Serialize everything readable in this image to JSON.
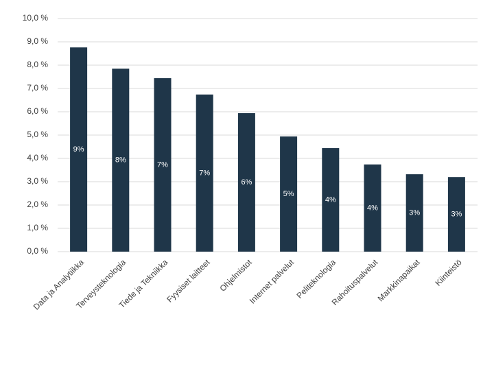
{
  "chart_data": {
    "type": "bar",
    "categories": [
      "Data ja Analytiikka",
      "Terveysteknologia",
      "Tiede ja Tekniikka",
      "Fyysiset laitteet",
      "Ohjelmistot",
      "Internet palvelut",
      "Peliteknologia",
      "Rahoituspalvelut",
      "Markkinapaikat",
      "Kiinteistö"
    ],
    "values": [
      8.76,
      7.85,
      7.44,
      6.74,
      5.94,
      4.94,
      4.44,
      3.74,
      3.32,
      3.2
    ],
    "value_labels": [
      "9%",
      "8%",
      "7%",
      "7%",
      "6%",
      "5%",
      "4%",
      "4%",
      "3%",
      "3%"
    ],
    "color": "#1f3649",
    "ylim": [
      0,
      10
    ],
    "yticks": [
      {
        "value": 0,
        "label": "0,0 %"
      },
      {
        "value": 1,
        "label": "1,0 %"
      },
      {
        "value": 2,
        "label": "2,0 %"
      },
      {
        "value": 3,
        "label": "3,0 %"
      },
      {
        "value": 4,
        "label": "4,0 %"
      },
      {
        "value": 5,
        "label": "5,0 %"
      },
      {
        "value": 6,
        "label": "6,0 %"
      },
      {
        "value": 7,
        "label": "7,0 %"
      },
      {
        "value": 8,
        "label": "8,0 %"
      },
      {
        "value": 9,
        "label": "9,0 %"
      },
      {
        "value": 10,
        "label": "10,0 %"
      }
    ],
    "grid": true
  }
}
